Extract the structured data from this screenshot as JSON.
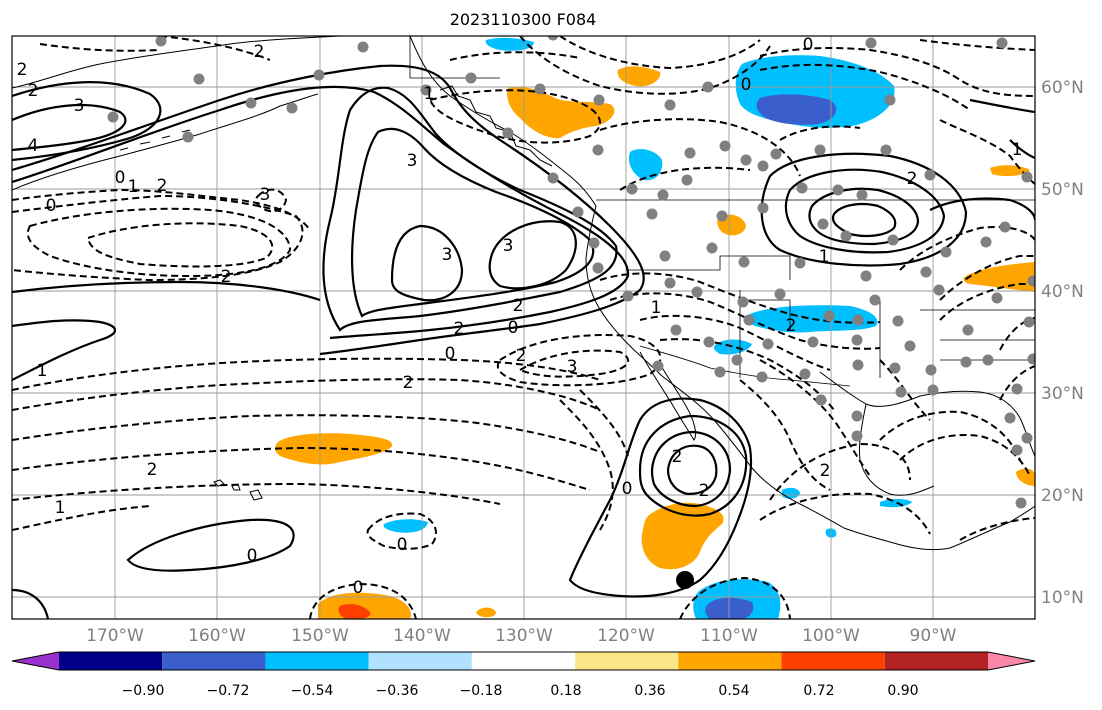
{
  "title": "2023110300 F084",
  "lon_labels": [
    "170°W",
    "160°W",
    "150°W",
    "140°W",
    "130°W",
    "120°W",
    "110°W",
    "100°W",
    "90°W"
  ],
  "lat_labels": [
    "60°N",
    "50°N",
    "40°N",
    "30°N",
    "20°N",
    "10°N"
  ],
  "colorbar": {
    "ticks": [
      "−0.90",
      "−0.72",
      "−0.54",
      "−0.36",
      "−0.18",
      "0.18",
      "0.36",
      "0.54",
      "0.72",
      "0.90"
    ],
    "colors": [
      "#9932cc",
      "#00008b",
      "#3a5fcd",
      "#00bfff",
      "#b0e2ff",
      "#ffffff",
      "#fbe788",
      "#ffa500",
      "#ff3f00",
      "#b22222",
      "#f887a9"
    ]
  },
  "contour_labels": {
    "c1": "2",
    "c2": "2",
    "c3": "3",
    "c4": "4",
    "c5": "0",
    "c6": "1",
    "c7": "2",
    "c8": "3",
    "c9": "2",
    "c10": "3",
    "c11": "3",
    "c12": "2",
    "c13": "0",
    "c14": "0",
    "c15": "2",
    "c16": "2",
    "c17": "3",
    "c18": "1",
    "c19": "1",
    "c20": "2",
    "c21": "2",
    "c22": "1",
    "c23": "0",
    "c24": "0",
    "c25": "0",
    "c26": "2",
    "c27": "0",
    "c28": "2",
    "c29": "1",
    "c30": "0",
    "c31": "2",
    "c32": "2",
    "c33": "2",
    "c34": "3",
    "c35": "0",
    "c36": "0",
    "c37": "1",
    "c38": "2",
    "c39": "1"
  }
}
